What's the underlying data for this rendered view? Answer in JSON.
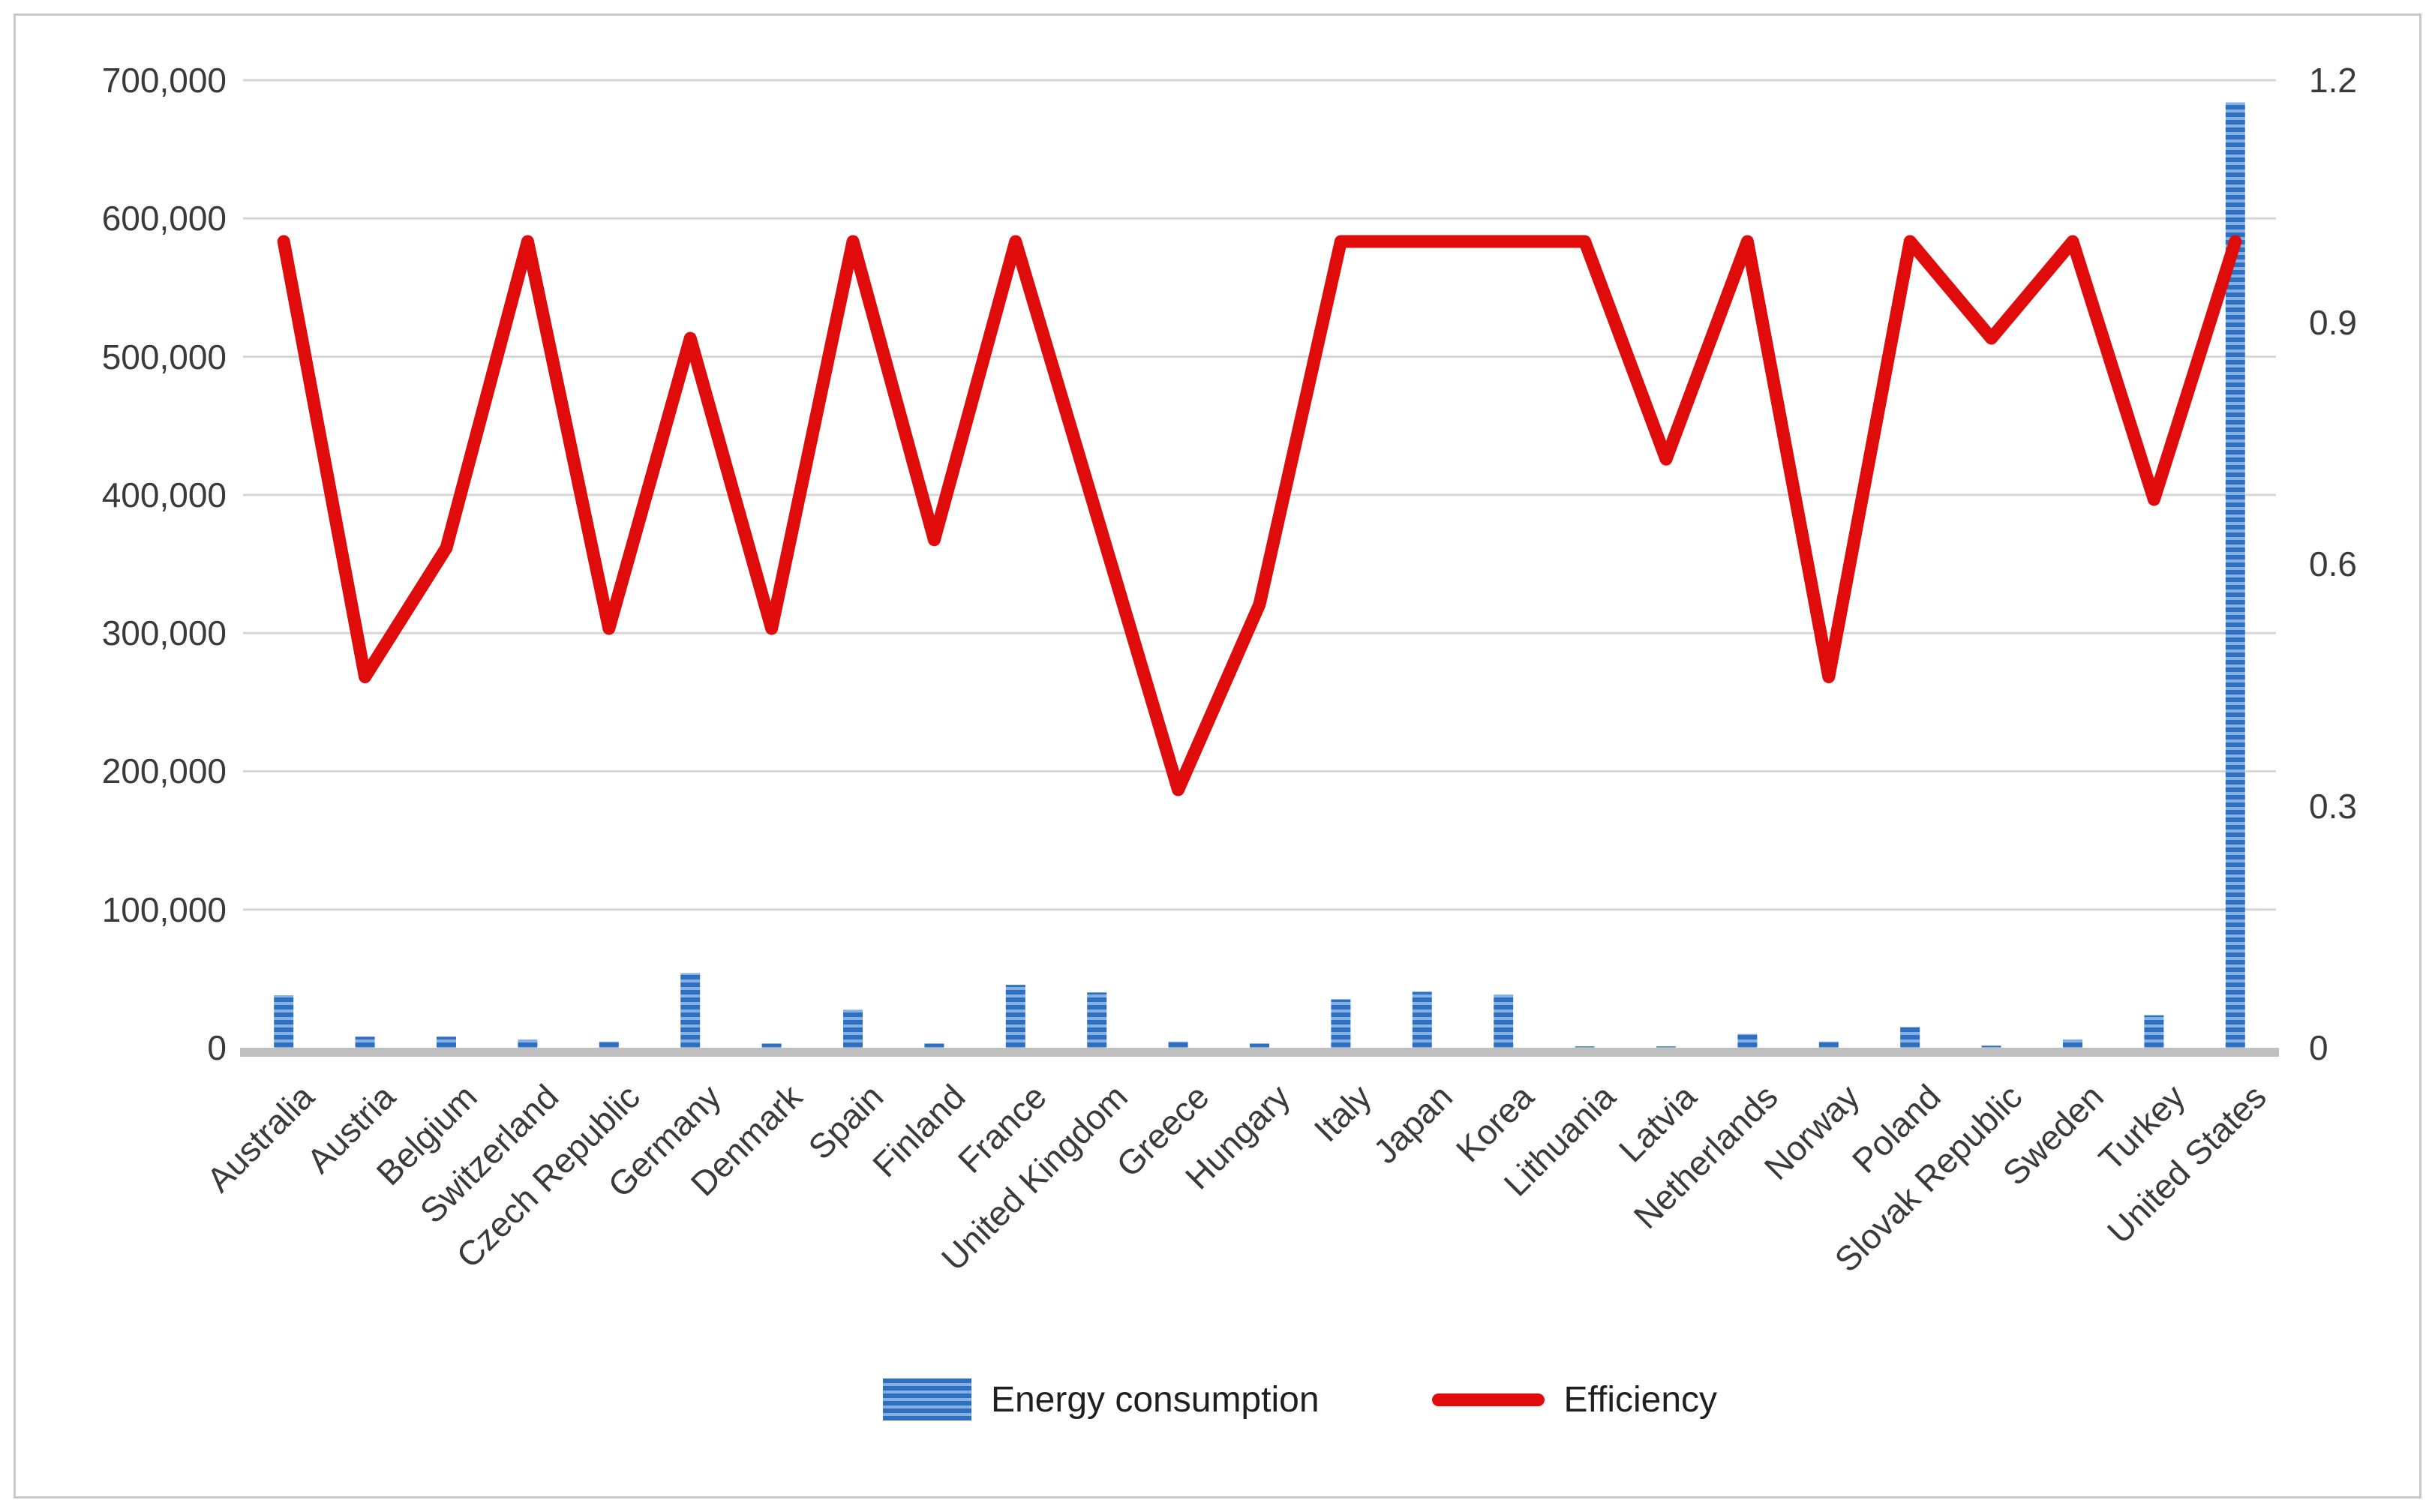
{
  "legend": {
    "bar_label": "Energy consumption",
    "line_label": "Efficiency"
  },
  "colors": {
    "bar_blue": "#2e6fc2",
    "bar_blue_light": "#85b1e2",
    "line_red": "#e00c0c",
    "gridline": "#d6d6d6",
    "axis_line": "#bfbfbf",
    "text": "#3a3a3a"
  },
  "chart_data": {
    "type": "combo-bar-line",
    "categories": [
      "Australia",
      "Austria",
      "Belgium",
      "Switzerland",
      "Czech Republic",
      "Germany",
      "Denmark",
      "Spain",
      "Finland",
      "France",
      "United Kingdom",
      "Greece",
      "Hungary",
      "Italy",
      "Japan",
      "Korea",
      "Lithuania",
      "Latvia",
      "Netherlands",
      "Norway",
      "Poland",
      "Slovak Republic",
      "Sweden",
      "Turkey",
      "United States"
    ],
    "series": [
      {
        "name": "Energy consumption",
        "type": "bar",
        "axis": "left",
        "values": [
          38000,
          8000,
          8000,
          6000,
          4500,
          54000,
          3000,
          27500,
          3000,
          45500,
          40000,
          4500,
          3000,
          35000,
          40500,
          38500,
          1000,
          1000,
          10000,
          4500,
          15000,
          1500,
          6000,
          23500,
          684000
        ]
      },
      {
        "name": "Efficiency",
        "type": "line",
        "axis": "right",
        "values": [
          1.0,
          0.46,
          0.62,
          1.0,
          0.52,
          0.88,
          0.52,
          1.0,
          0.63,
          1.0,
          0.66,
          0.32,
          0.55,
          1.0,
          1.0,
          1.0,
          1.0,
          0.73,
          1.0,
          0.46,
          1.0,
          0.88,
          1.0,
          0.68,
          1.0
        ]
      }
    ],
    "left_axis": {
      "min": 0,
      "max": 700000,
      "step": 100000,
      "tick_labels": [
        "0",
        "100,000",
        "200,000",
        "300,000",
        "400,000",
        "500,000",
        "600,000",
        "700,000"
      ]
    },
    "right_axis": {
      "min": 0,
      "max": 1.2,
      "tick_values": [
        0,
        0.3,
        0.6,
        0.9,
        1.2
      ],
      "tick_labels": [
        "0",
        "0.3",
        "0.6",
        "0.9",
        "1.2"
      ]
    },
    "grid": "horizontal",
    "legend_position": "bottom",
    "title": ""
  }
}
